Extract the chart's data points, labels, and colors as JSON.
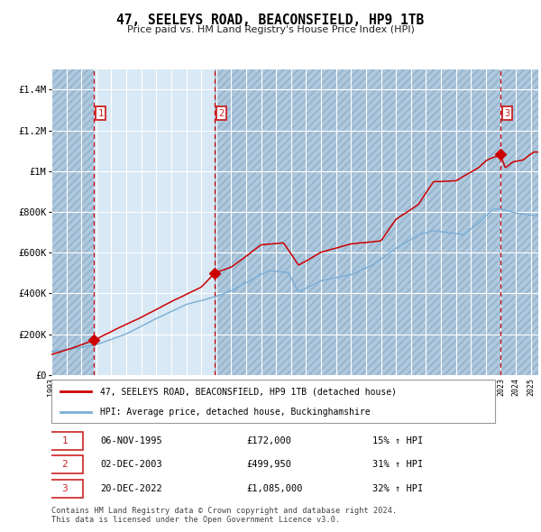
{
  "title": "47, SEELEYS ROAD, BEACONSFIELD, HP9 1TB",
  "subtitle": "Price paid vs. HM Land Registry's House Price Index (HPI)",
  "hpi_label": "HPI: Average price, detached house, Buckinghamshire",
  "price_label": "47, SEELEYS ROAD, BEACONSFIELD, HP9 1TB (detached house)",
  "footer1": "Contains HM Land Registry data © Crown copyright and database right 2024.",
  "footer2": "This data is licensed under the Open Government Licence v3.0.",
  "sales": [
    {
      "num": 1,
      "date": "06-NOV-1995",
      "date_x": 1995.85,
      "price": 172000,
      "pct": "15%",
      "dir": "↑"
    },
    {
      "num": 2,
      "date": "02-DEC-2003",
      "date_x": 2003.92,
      "price": 499950,
      "pct": "31%",
      "dir": "↑"
    },
    {
      "num": 3,
      "date": "20-DEC-2022",
      "date_x": 2022.97,
      "price": 1085000,
      "pct": "32%",
      "dir": "↑"
    }
  ],
  "sale_prices": [
    172000,
    499950,
    1085000
  ],
  "ylim": [
    0,
    1500000
  ],
  "xlim_start": 1993.0,
  "xlim_end": 2025.5,
  "bg_color": "#d8e8f4",
  "plain_bg": "#d8e8f4",
  "grid_color": "#ffffff",
  "red_line_color": "#cc0000",
  "blue_line_color": "#7aadd4",
  "marker_color": "#cc0000",
  "vline_color": "#cc0000",
  "box_color": "#cc2222",
  "hatch_color": "#aec8de"
}
